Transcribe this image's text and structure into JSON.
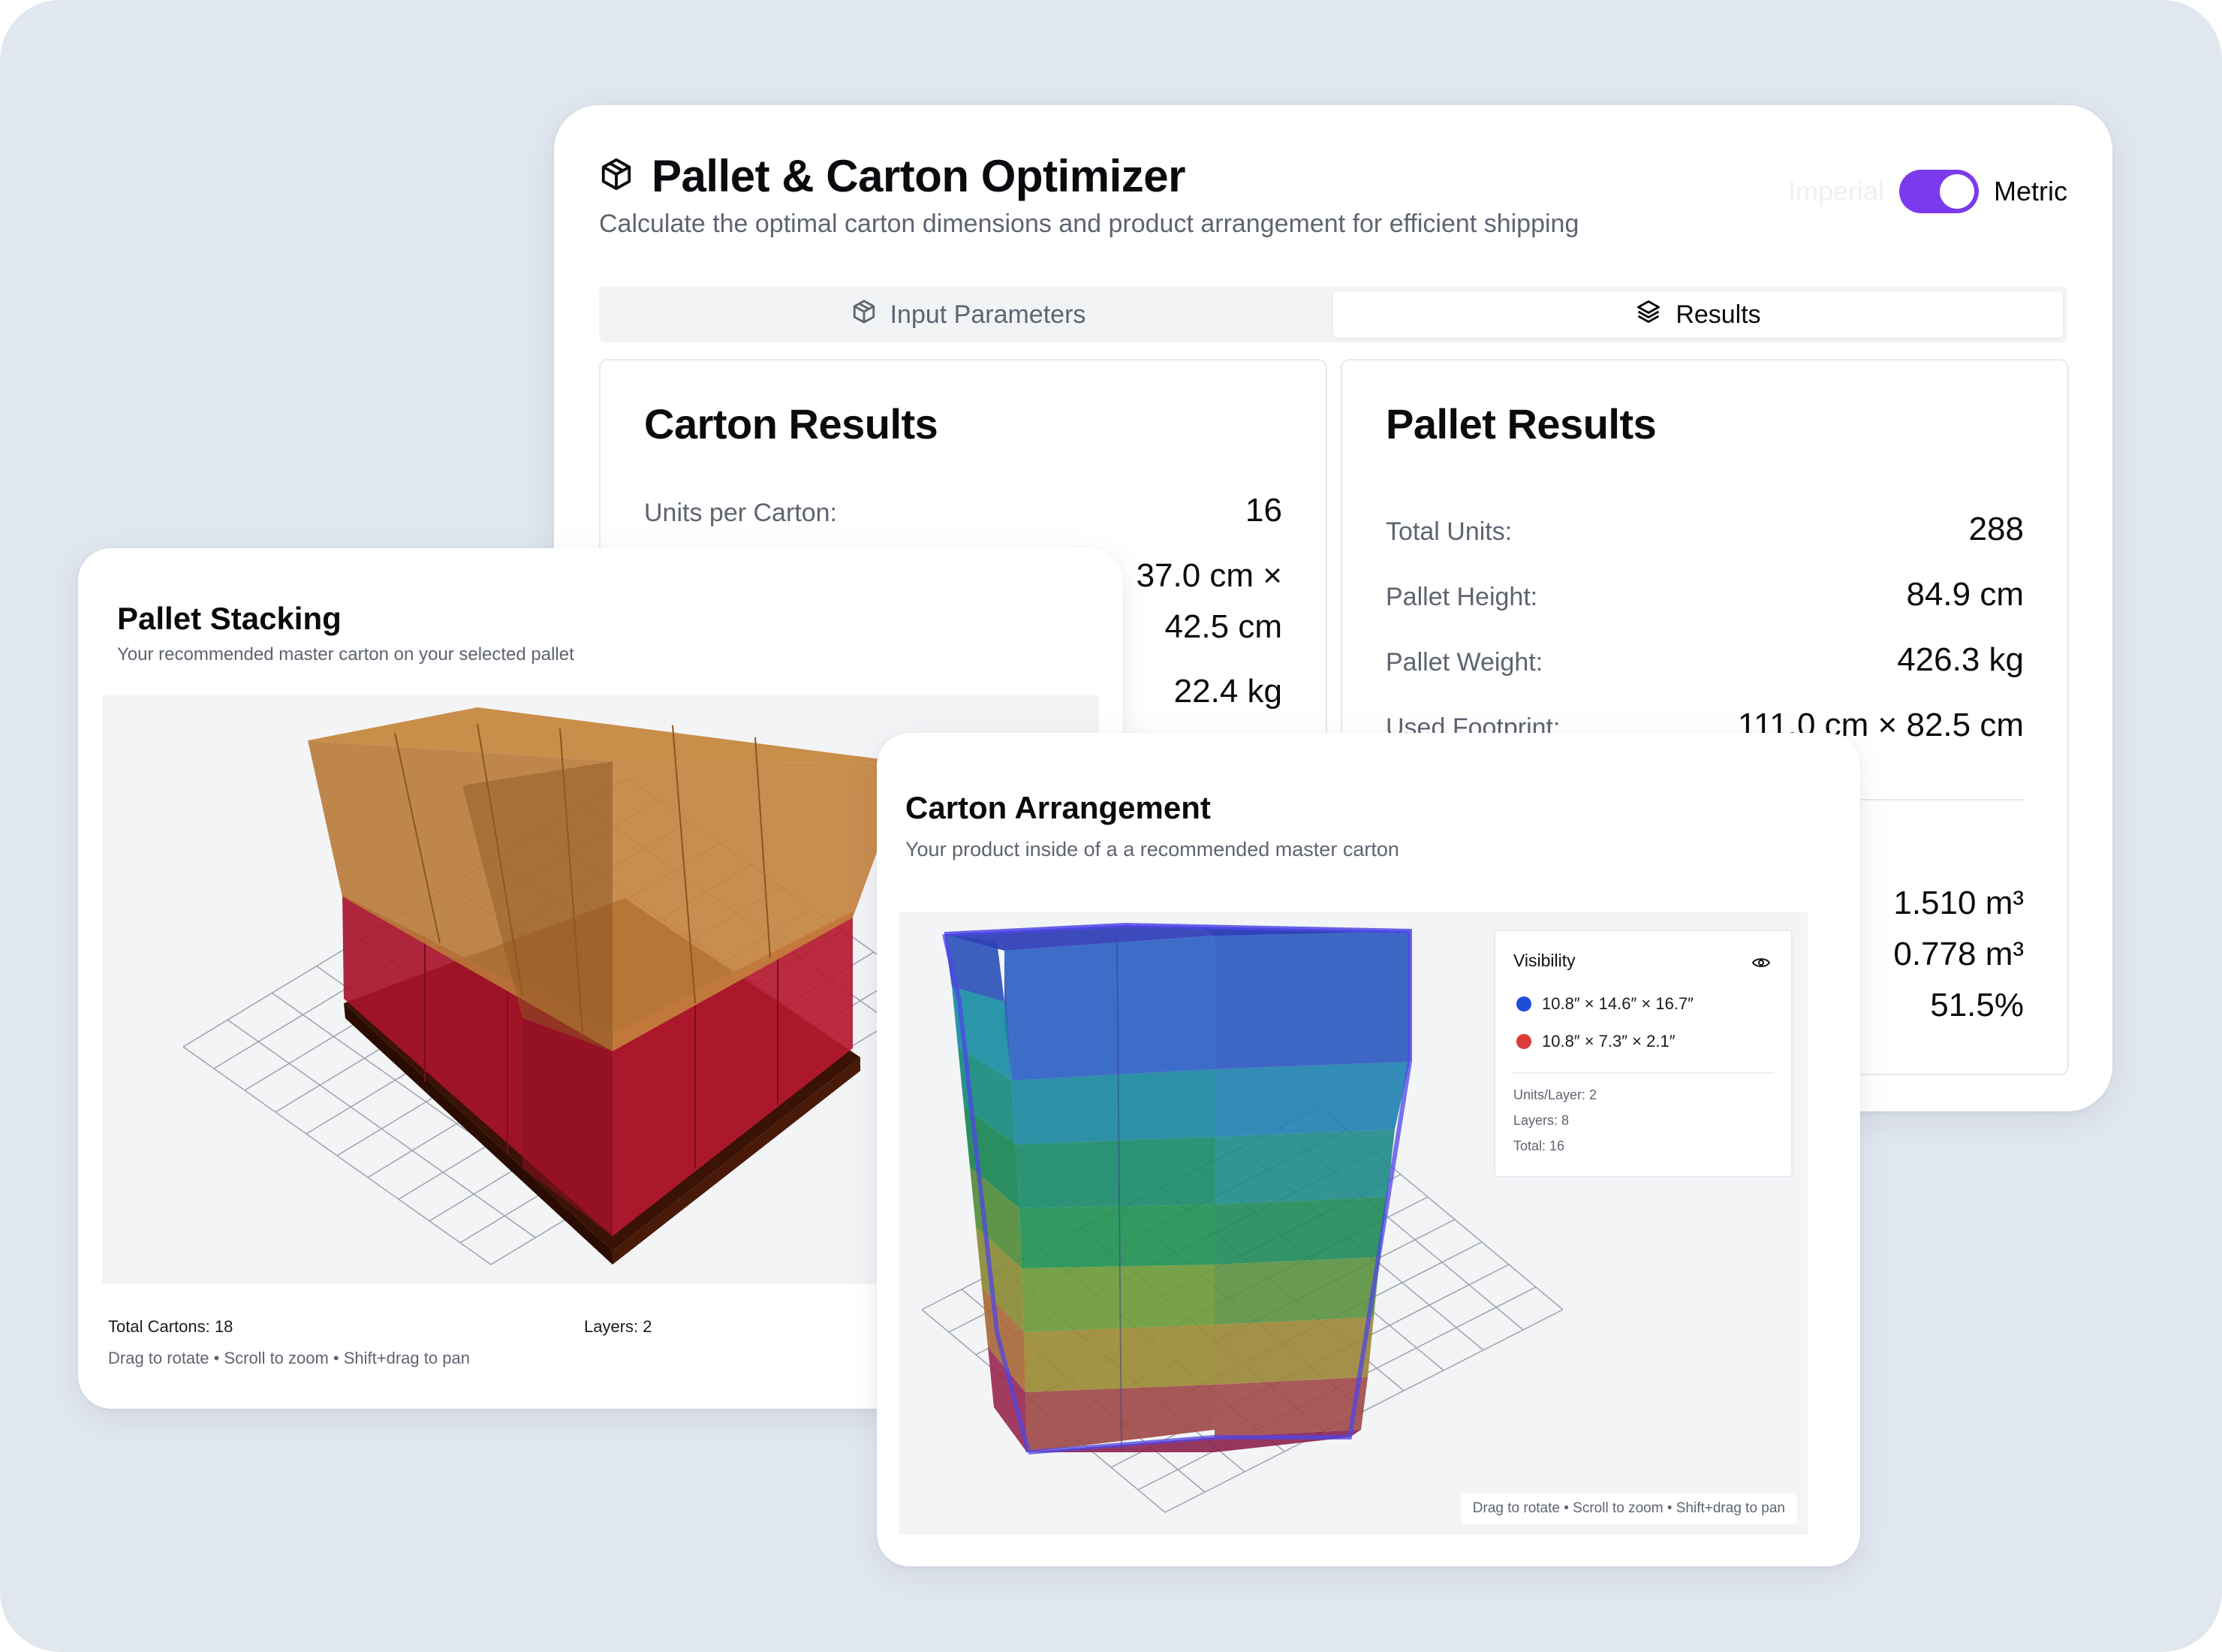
{
  "app": {
    "title": "Pallet & Carton Optimizer",
    "subtitle": "Calculate the optimal carton dimensions and product arrangement for efficient shipping",
    "toggle_off_label": "Imperial",
    "toggle_on_label": "Metric",
    "accent": "#7c3aed"
  },
  "tabs": [
    {
      "label": "Input Parameters",
      "icon": "box-icon",
      "active": false
    },
    {
      "label": "Results",
      "icon": "layers-icon",
      "active": true
    }
  ],
  "carton_results": {
    "title": "Carton Results",
    "units_per_carton_label": "Units per Carton:",
    "units_per_carton": "16",
    "dimensions_line1": "37.0 cm ×",
    "dimensions_line2": "42.5 cm",
    "weight": "22.4 kg"
  },
  "pallet_results": {
    "title": "Pallet Results",
    "total_units_label": "Total Units:",
    "total_units": "288",
    "pallet_height_label": "Pallet Height:",
    "pallet_height": "84.9 cm",
    "pallet_weight_label": "Pallet Weight:",
    "pallet_weight": "426.3 kg",
    "used_footprint_label": "Used Footprint:",
    "used_footprint": "111.0 cm × 82.5 cm",
    "volume_1": "1.510 m³",
    "volume_2": "0.778 m³",
    "efficiency": "51.5%"
  },
  "pallet_stacking": {
    "title": "Pallet Stacking",
    "subtitle": "Your recommended master carton on your selected pallet",
    "total_cartons": "Total Cartons: 18",
    "layers": "Layers: 2",
    "hint": "Drag to rotate • Scroll to zoom • Shift+drag to pan"
  },
  "carton_arrangement": {
    "title": "Carton Arrangement",
    "subtitle": "Your product inside of a a recommended master carton",
    "visibility_title": "Visibility",
    "legend": [
      {
        "label": "10.8″ × 14.6″ × 16.7″",
        "color": "#1d4ed8"
      },
      {
        "label": "10.8″ × 7.3″ × 2.1″",
        "color": "#dc3b3b"
      }
    ],
    "units_per_layer": "Units/Layer: 2",
    "layers": "Layers: 8",
    "total": "Total: 16",
    "hint": "Drag to rotate • Scroll to zoom • Shift+drag to pan"
  }
}
